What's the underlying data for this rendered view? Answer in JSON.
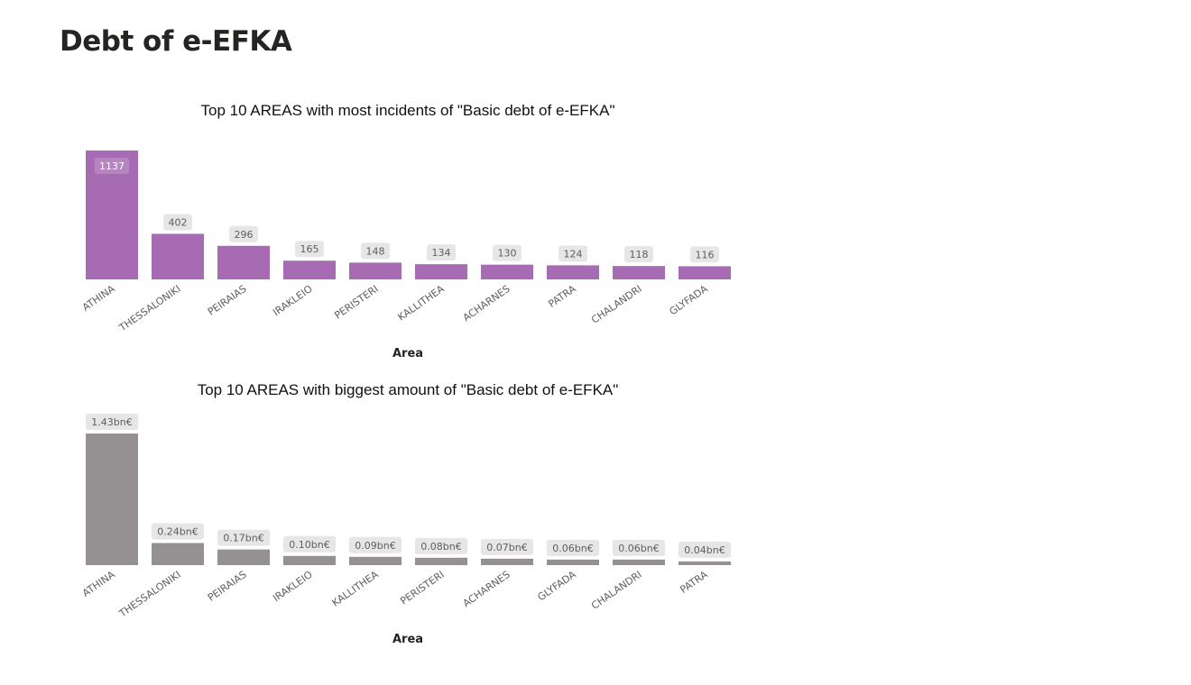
{
  "page": {
    "title": "Debt of e-EFKA"
  },
  "chart_data": [
    {
      "type": "bar",
      "title": "Top 10 AREAS with most incidents of \"Basic debt of e-EFKA\"",
      "xlabel": "Area",
      "ylabel": "",
      "categories": [
        "ATHINA",
        "THESSALONIKI",
        "PEIRAIAS",
        "IRAKLEIO",
        "PERISTERI",
        "KALLITHEA",
        "ACHARNES",
        "PATRA",
        "CHALANDRI",
        "GLYFADA"
      ],
      "values": [
        1137,
        402,
        296,
        165,
        148,
        134,
        130,
        124,
        118,
        116
      ],
      "data_labels": [
        "1137",
        "402",
        "296",
        "165",
        "148",
        "134",
        "130",
        "124",
        "118",
        "116"
      ],
      "ylim": [
        0,
        1137
      ],
      "grid": false,
      "color": "#a66bb3",
      "first_label_inside": true
    },
    {
      "type": "bar",
      "title": "Top 10 AREAS with biggest amount of \"Basic debt of e-EFKA\"",
      "xlabel": "Area",
      "ylabel": "",
      "categories": [
        "ATHINA",
        "THESSALONIKI",
        "PEIRAIAS",
        "IRAKLEIO",
        "KALLITHEA",
        "PERISTERI",
        "ACHARNES",
        "GLYFADA",
        "CHALANDRI",
        "PATRA"
      ],
      "values": [
        1.43,
        0.24,
        0.17,
        0.1,
        0.09,
        0.08,
        0.07,
        0.06,
        0.06,
        0.04
      ],
      "data_labels": [
        "1.43bn€",
        "0.24bn€",
        "0.17bn€",
        "0.10bn€",
        "0.09bn€",
        "0.08bn€",
        "0.07bn€",
        "0.06bn€",
        "0.06bn€",
        "0.04bn€"
      ],
      "ylim": [
        0,
        1.43
      ],
      "grid": false,
      "color": "#959091",
      "first_label_inside": false
    }
  ]
}
